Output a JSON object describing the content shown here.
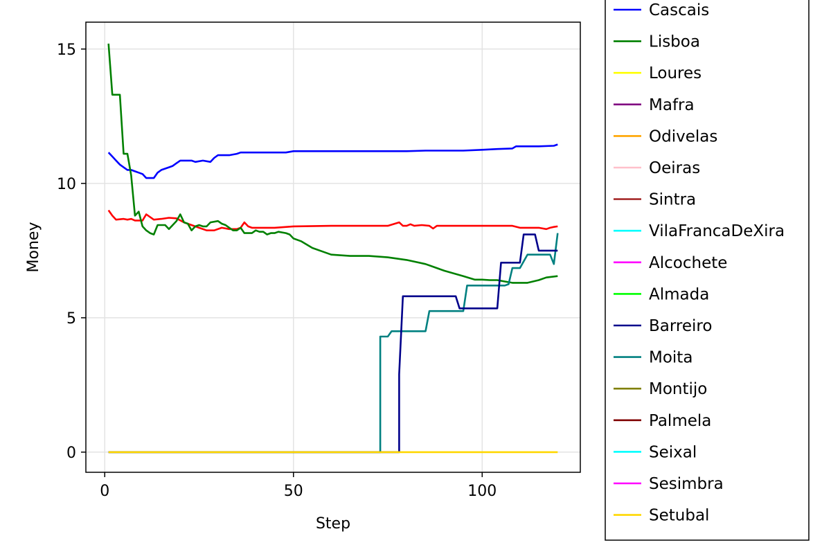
{
  "chart_data": {
    "type": "line",
    "title": "",
    "xlabel": "Step",
    "ylabel": "Money",
    "xlim": [
      -5,
      126
    ],
    "ylim": [
      -0.75,
      16
    ],
    "xticks": [
      0,
      50,
      100
    ],
    "yticks": [
      0,
      5,
      10,
      15
    ],
    "xtick_labels": [
      "0",
      "50",
      "100"
    ],
    "ytick_labels": [
      "0",
      "5",
      "10",
      "15"
    ],
    "grid": true,
    "legend_position": "right",
    "legend": [
      {
        "name": "Cascais",
        "color": "#0000ff"
      },
      {
        "name": "Lisboa",
        "color": "#008000"
      },
      {
        "name": "Loures",
        "color": "#ffff00"
      },
      {
        "name": "Mafra",
        "color": "#800080"
      },
      {
        "name": "Odivelas",
        "color": "#ffa500"
      },
      {
        "name": "Oeiras",
        "color": "#ffc0cb"
      },
      {
        "name": "Sintra",
        "color": "#a52a2a"
      },
      {
        "name": "VilaFrancaDeXira",
        "color": "#00ffff"
      },
      {
        "name": "Alcochete",
        "color": "#ff00ff"
      },
      {
        "name": "Almada",
        "color": "#00ff00"
      },
      {
        "name": "Barreiro",
        "color": "#00008b"
      },
      {
        "name": "Moita",
        "color": "#008080"
      },
      {
        "name": "Montijo",
        "color": "#808000"
      },
      {
        "name": "Palmela",
        "color": "#800000"
      },
      {
        "name": "Seixal",
        "color": "#00ffff"
      },
      {
        "name": "Sesimbra",
        "color": "#ff00ff"
      },
      {
        "name": "Setubal",
        "color": "#ffd700"
      }
    ],
    "series": [
      {
        "color": "#ff0000",
        "x": [
          1,
          2,
          3,
          5,
          6,
          7,
          8,
          10,
          11,
          13,
          15,
          17,
          19,
          21,
          23,
          25,
          27,
          29,
          31,
          33,
          35,
          36,
          37,
          38,
          39,
          40,
          45,
          50,
          60,
          70,
          75,
          78,
          79,
          80,
          81,
          82,
          84,
          86,
          87,
          88,
          90,
          95,
          100,
          108,
          110,
          115,
          117,
          118,
          119,
          120
        ],
        "y": [
          9.0,
          8.8,
          8.65,
          8.68,
          8.65,
          8.68,
          8.62,
          8.62,
          8.85,
          8.65,
          8.68,
          8.72,
          8.7,
          8.55,
          8.45,
          8.35,
          8.25,
          8.25,
          8.35,
          8.3,
          8.3,
          8.35,
          8.55,
          8.4,
          8.35,
          8.35,
          8.35,
          8.4,
          8.42,
          8.42,
          8.42,
          8.55,
          8.42,
          8.42,
          8.48,
          8.42,
          8.45,
          8.42,
          8.32,
          8.42,
          8.42,
          8.42,
          8.42,
          8.42,
          8.35,
          8.35,
          8.3,
          8.35,
          8.38,
          8.4
        ]
      },
      {
        "name": "Cascais",
        "color": "#0000ff",
        "x": [
          1,
          2,
          3,
          4,
          5,
          6,
          7,
          8,
          9,
          10,
          11,
          12,
          13,
          14,
          15,
          16,
          17,
          18,
          19,
          20,
          22,
          23,
          24,
          26,
          28,
          29,
          30,
          33,
          35,
          36,
          40,
          45,
          48,
          50,
          60,
          70,
          80,
          85,
          90,
          95,
          100,
          104,
          108,
          109,
          112,
          115,
          119,
          120
        ],
        "y": [
          11.15,
          11.0,
          10.85,
          10.7,
          10.6,
          10.5,
          10.5,
          10.45,
          10.4,
          10.35,
          10.2,
          10.2,
          10.2,
          10.4,
          10.5,
          10.55,
          10.6,
          10.65,
          10.75,
          10.85,
          10.85,
          10.85,
          10.8,
          10.85,
          10.8,
          10.95,
          11.05,
          11.05,
          11.1,
          11.15,
          11.15,
          11.15,
          11.15,
          11.2,
          11.2,
          11.2,
          11.2,
          11.22,
          11.22,
          11.22,
          11.25,
          11.28,
          11.3,
          11.38,
          11.38,
          11.38,
          11.4,
          11.45
        ]
      },
      {
        "name": "Lisboa",
        "color": "#008000",
        "x": [
          1,
          2,
          3,
          4,
          5,
          6,
          7,
          8,
          9,
          10,
          11,
          12,
          13,
          14,
          16,
          17,
          18,
          19,
          20,
          21,
          22,
          23,
          24,
          25,
          26,
          27,
          28,
          30,
          31,
          32,
          33,
          34,
          35,
          36,
          37,
          38,
          39,
          40,
          41,
          42,
          43,
          44,
          45,
          46,
          48,
          49,
          50,
          52,
          55,
          58,
          60,
          65,
          70,
          75,
          80,
          85,
          90,
          95,
          98,
          100,
          102,
          104,
          106,
          108,
          112,
          115,
          117,
          120
        ],
        "y": [
          15.2,
          13.3,
          13.3,
          13.3,
          11.1,
          11.1,
          10.3,
          8.8,
          8.95,
          8.4,
          8.25,
          8.15,
          8.1,
          8.45,
          8.45,
          8.3,
          8.45,
          8.6,
          8.85,
          8.55,
          8.5,
          8.25,
          8.4,
          8.45,
          8.4,
          8.4,
          8.55,
          8.6,
          8.5,
          8.45,
          8.35,
          8.25,
          8.25,
          8.35,
          8.15,
          8.15,
          8.15,
          8.25,
          8.2,
          8.2,
          8.1,
          8.15,
          8.15,
          8.2,
          8.15,
          8.1,
          7.95,
          7.85,
          7.6,
          7.45,
          7.35,
          7.3,
          7.3,
          7.25,
          7.15,
          7.0,
          6.75,
          6.55,
          6.42,
          6.42,
          6.4,
          6.4,
          6.35,
          6.3,
          6.3,
          6.4,
          6.5,
          6.55
        ]
      },
      {
        "name": "Moita",
        "color": "#008080",
        "x": [
          1,
          73,
          73,
          74,
          75,
          76,
          77,
          78,
          84,
          85,
          86,
          95,
          96,
          106,
          107,
          108,
          109,
          110,
          112,
          113,
          116,
          117,
          118,
          119,
          120
        ],
        "y": [
          0,
          0,
          4.3,
          4.3,
          4.3,
          4.5,
          4.5,
          4.5,
          4.5,
          4.5,
          5.25,
          5.25,
          6.2,
          6.2,
          6.25,
          6.85,
          6.85,
          6.85,
          7.35,
          7.35,
          7.35,
          7.35,
          7.35,
          7.0,
          8.15
        ]
      },
      {
        "name": "Barreiro",
        "color": "#00008b",
        "x": [
          1,
          78,
          78,
          79,
          80,
          85,
          90,
          93,
          94,
          100,
          104,
          105,
          109,
          110,
          111,
          113,
          114,
          115,
          116,
          120
        ],
        "y": [
          0,
          0,
          2.9,
          5.8,
          5.8,
          5.8,
          5.8,
          5.8,
          5.35,
          5.35,
          5.35,
          7.05,
          7.05,
          7.05,
          8.1,
          8.1,
          8.1,
          7.5,
          7.5,
          7.5
        ]
      },
      {
        "name": "Setubal",
        "color": "#ffd700",
        "x": [
          1,
          120
        ],
        "y": [
          0,
          0
        ]
      }
    ]
  }
}
